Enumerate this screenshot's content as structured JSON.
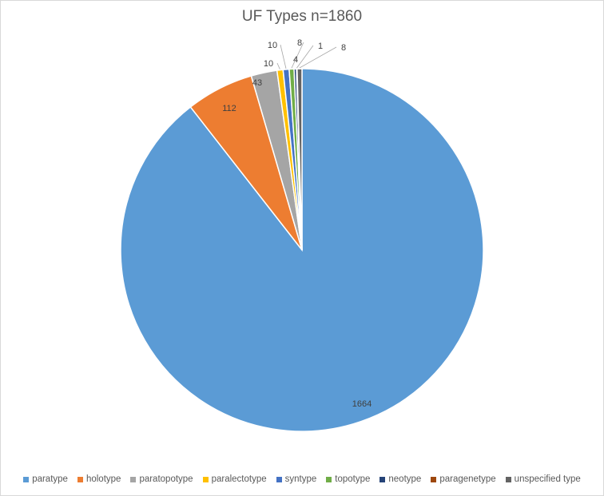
{
  "chart_data": {
    "type": "pie",
    "title": "UF Types n=1860",
    "categories": [
      "paratype",
      "holotype",
      "paratopotype",
      "paralectotype",
      "syntype",
      "topotype",
      "neotype",
      "paragenetype",
      "unspecified type"
    ],
    "values": [
      1664,
      112,
      43,
      10,
      10,
      8,
      4,
      1,
      8
    ],
    "data_labels": [
      "1664",
      "112",
      "43",
      "10",
      "10",
      "8",
      "4",
      "1",
      "8"
    ],
    "colors": [
      "#5b9bd5",
      "#ed7d31",
      "#a5a5a5",
      "#ffc000",
      "#4472c4",
      "#70ad47",
      "#264478",
      "#9e480e",
      "#636363"
    ],
    "legend_position": "bottom",
    "start_angle": "12 o'clock",
    "direction": "clockwise"
  }
}
